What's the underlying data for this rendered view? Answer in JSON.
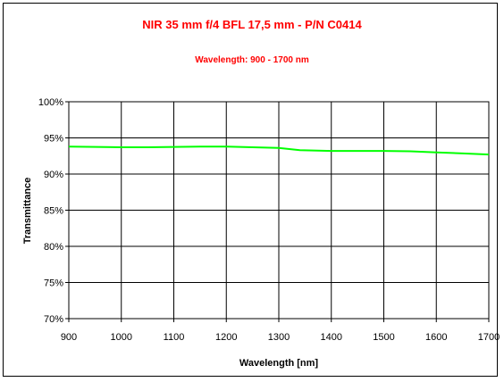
{
  "chart_data": {
    "type": "line",
    "title": "NIR 35 mm f/4 BFL 17,5 mm - P/N C0414",
    "subtitle": "Wavelength: 900 - 1700 nm",
    "xlabel": "Wavelength [nm]",
    "ylabel": "Transmittance",
    "xlim": [
      900,
      1700
    ],
    "ylim": [
      70,
      100
    ],
    "xticks": [
      "900",
      "1000",
      "1100",
      "1200",
      "1300",
      "1400",
      "1500",
      "1600",
      "1700"
    ],
    "yticks": [
      "70%",
      "75%",
      "80%",
      "85%",
      "90%",
      "95%",
      "100%"
    ],
    "grid": true,
    "line_color": "#00ff00",
    "title_color": "#ff0000",
    "series": [
      {
        "x": [
          900,
          1000,
          1050,
          1100,
          1150,
          1200,
          1250,
          1300,
          1340,
          1400,
          1450,
          1500,
          1550,
          1600,
          1650,
          1700
        ],
        "values": [
          93.8,
          93.7,
          93.7,
          93.75,
          93.8,
          93.8,
          93.7,
          93.6,
          93.3,
          93.2,
          93.2,
          93.2,
          93.15,
          93.0,
          92.85,
          92.7
        ]
      }
    ]
  }
}
